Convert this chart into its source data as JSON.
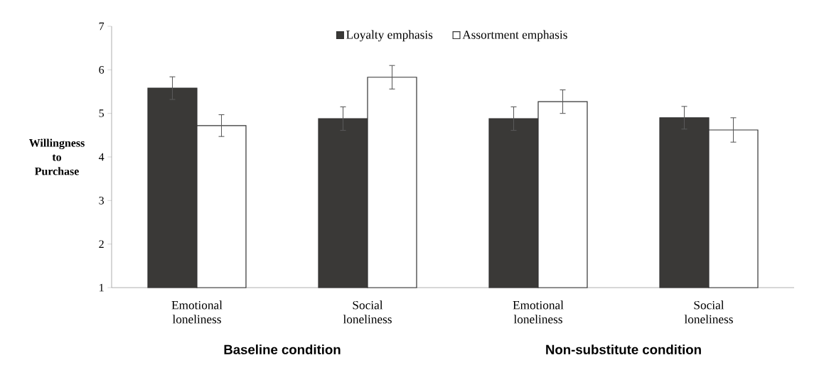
{
  "chart_data": {
    "type": "bar",
    "ylabel": "Willingness to Purchase",
    "categories": [
      "Emotional loneliness",
      "Social loneliness",
      "Emotional loneliness",
      "Social loneliness"
    ],
    "series": [
      {
        "name": "Loyalty emphasis",
        "color": "#3a3937",
        "values": [
          5.58,
          4.88,
          4.88,
          4.9
        ],
        "errors": [
          0.26,
          0.27,
          0.27,
          0.26
        ]
      },
      {
        "name": "Assortment emphasis",
        "color": "#ffffff",
        "values": [
          4.72,
          5.83,
          5.27,
          4.62
        ],
        "errors": [
          0.25,
          0.27,
          0.27,
          0.28
        ]
      }
    ],
    "ylim": [
      1,
      7
    ],
    "yticks": [
      1,
      2,
      3,
      4,
      5,
      6,
      7
    ],
    "legend": "top",
    "grid": false,
    "annotations": [
      "Baseline condition",
      "Non-substitute condition"
    ]
  }
}
